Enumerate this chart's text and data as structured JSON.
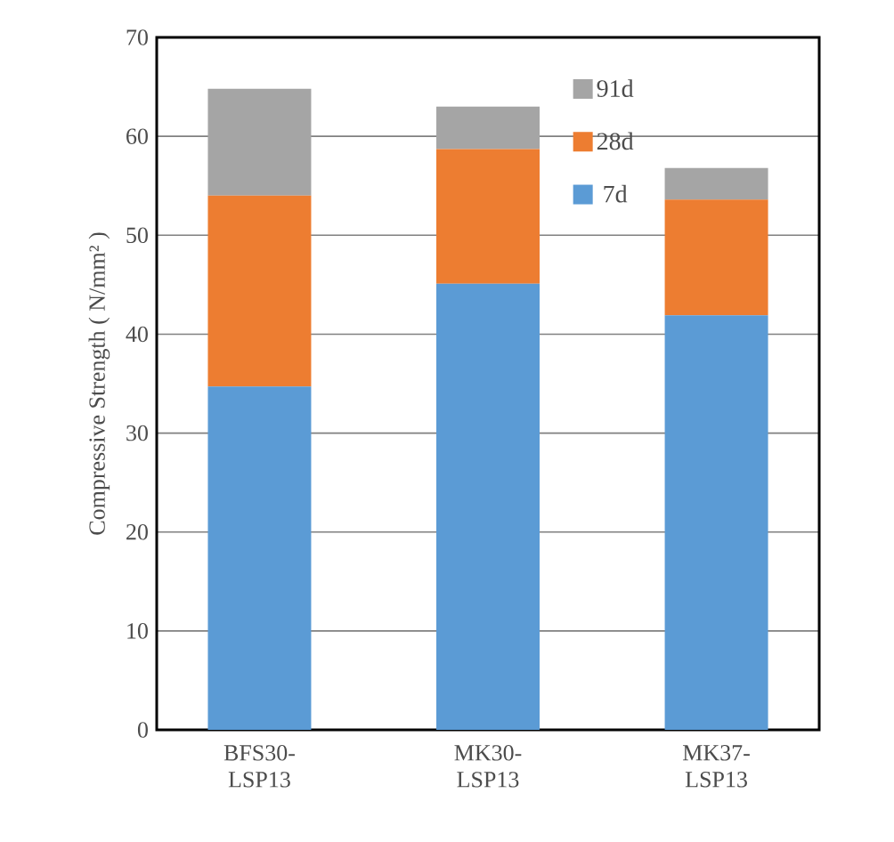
{
  "chart_data": {
    "type": "bar",
    "stacked": true,
    "ylabel": "Compressive Strength ( N/mm² )",
    "categories": [
      "BFS30-LSP13",
      "MK30-LSP13",
      "MK37-LSP13"
    ],
    "series": [
      {
        "name": "7d",
        "color": "#5b9bd5",
        "values": [
          34.7,
          45.1,
          41.9
        ]
      },
      {
        "name": "28d",
        "color": "#ed7d31",
        "values": [
          19.3,
          13.6,
          11.7
        ]
      },
      {
        "name": "91d",
        "color": "#a5a5a5",
        "values": [
          10.8,
          4.3,
          3.2
        ]
      }
    ],
    "ylim": [
      0,
      70
    ],
    "yticks": [
      0,
      10,
      20,
      30,
      40,
      50,
      60,
      70
    ],
    "grid": "y",
    "legend": "top right"
  }
}
